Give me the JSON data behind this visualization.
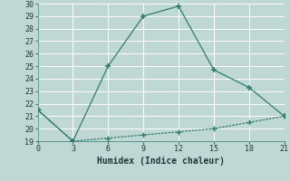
{
  "x": [
    0,
    3,
    6,
    9,
    12,
    15,
    18,
    21
  ],
  "y_curve": [
    21.5,
    19.0,
    25.0,
    29.0,
    29.8,
    24.7,
    23.3,
    21.0
  ],
  "y_flat": [
    21.5,
    19.0,
    19.25,
    19.5,
    19.75,
    20.0,
    20.5,
    21.0
  ],
  "xlabel": "Humidex (Indice chaleur)",
  "ylim": [
    19,
    30
  ],
  "xlim": [
    0,
    21
  ],
  "yticks": [
    19,
    20,
    21,
    22,
    23,
    24,
    25,
    26,
    27,
    28,
    29,
    30
  ],
  "xticks": [
    0,
    3,
    6,
    9,
    12,
    15,
    18,
    21
  ],
  "line_color": "#2e7d6e",
  "bg_color": "#c0d8d4",
  "grid_color": "#b8e0db",
  "font_family": "monospace",
  "tick_font_size": 6,
  "xlabel_font_size": 7
}
